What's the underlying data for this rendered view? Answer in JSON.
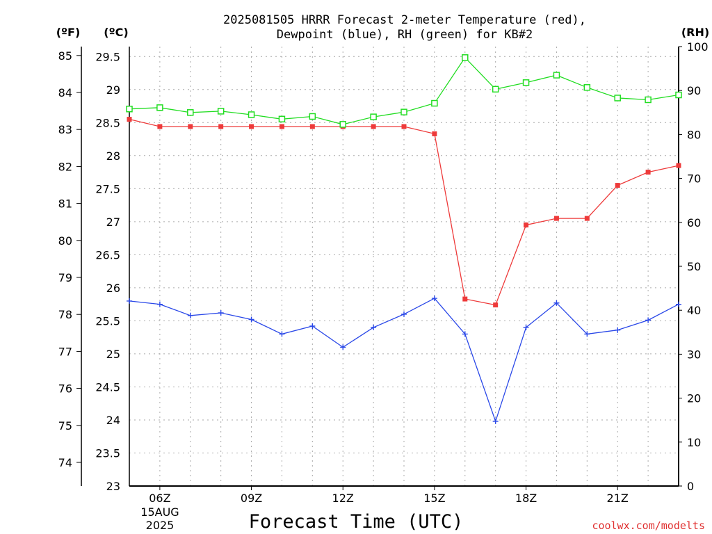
{
  "chart_data": {
    "type": "line",
    "title": "2025081505 HRRR Forecast 2-meter Temperature (red), Dewpoint (blue), RH (green) for KB#2",
    "title_lines": [
      "2025081505 HRRR Forecast 2-meter Temperature (red),",
      "Dewpoint (blue), RH (green) for KB#2"
    ],
    "xlabel": "Forecast Time (UTC)",
    "credit": "coolwx.com/modelts",
    "x_hours": [
      5,
      6,
      7,
      8,
      9,
      10,
      11,
      12,
      13,
      14,
      15,
      16,
      17,
      18,
      19,
      20,
      21,
      22,
      23
    ],
    "xlim": [
      5,
      23
    ],
    "x_ticks": [
      {
        "hour": 6,
        "label": "06Z"
      },
      {
        "hour": 9,
        "label": "09Z"
      },
      {
        "hour": 12,
        "label": "12Z"
      },
      {
        "hour": 15,
        "label": "15Z"
      },
      {
        "hour": 18,
        "label": "18Z"
      },
      {
        "hour": 21,
        "label": "21Z"
      }
    ],
    "date_line1": "15AUG",
    "date_line2": "2025",
    "axes": {
      "fahrenheit": {
        "unit": "(ºF)",
        "ticks": [
          "74",
          "75",
          "76",
          "77",
          "78",
          "79",
          "80",
          "81",
          "82",
          "83",
          "84",
          "85"
        ]
      },
      "celsius": {
        "unit": "(ºC)",
        "ylim": [
          23,
          29.65
        ],
        "ticks": [
          "23",
          "23.5",
          "24",
          "24.5",
          "25",
          "25.5",
          "26",
          "26.5",
          "27",
          "27.5",
          "28",
          "28.5",
          "29",
          "29.5"
        ]
      },
      "rh": {
        "unit": "(RH)",
        "ylim": [
          0,
          100
        ],
        "ticks": [
          "0",
          "10",
          "20",
          "30",
          "40",
          "50",
          "60",
          "70",
          "80",
          "90",
          "100"
        ]
      }
    },
    "grid": true,
    "series": [
      {
        "name": "Temperature",
        "color": "#ee3a3a",
        "axis": "celsius",
        "marker": "filled-square",
        "values": [
          28.55,
          28.44,
          28.44,
          28.44,
          28.44,
          28.44,
          28.44,
          28.44,
          28.44,
          28.44,
          28.33,
          25.83,
          25.74,
          26.95,
          27.05,
          27.05,
          27.55,
          27.75,
          27.85
        ]
      },
      {
        "name": "Dewpoint",
        "color": "#2a48e8",
        "axis": "celsius",
        "marker": "plus",
        "values": [
          25.8,
          25.75,
          25.58,
          25.62,
          25.52,
          25.3,
          25.42,
          25.1,
          25.4,
          25.6,
          25.84,
          25.3,
          23.98,
          25.4,
          25.77,
          25.3,
          25.36,
          25.51,
          25.75
        ]
      },
      {
        "name": "RH",
        "color": "#22dd22",
        "axis": "rh",
        "marker": "open-square",
        "values": [
          85.8,
          86.1,
          85.0,
          85.3,
          84.5,
          83.5,
          84.1,
          82.3,
          84.0,
          85.1,
          87.1,
          97.5,
          90.3,
          91.8,
          93.5,
          90.7,
          88.3,
          87.9,
          89.0
        ]
      }
    ]
  }
}
